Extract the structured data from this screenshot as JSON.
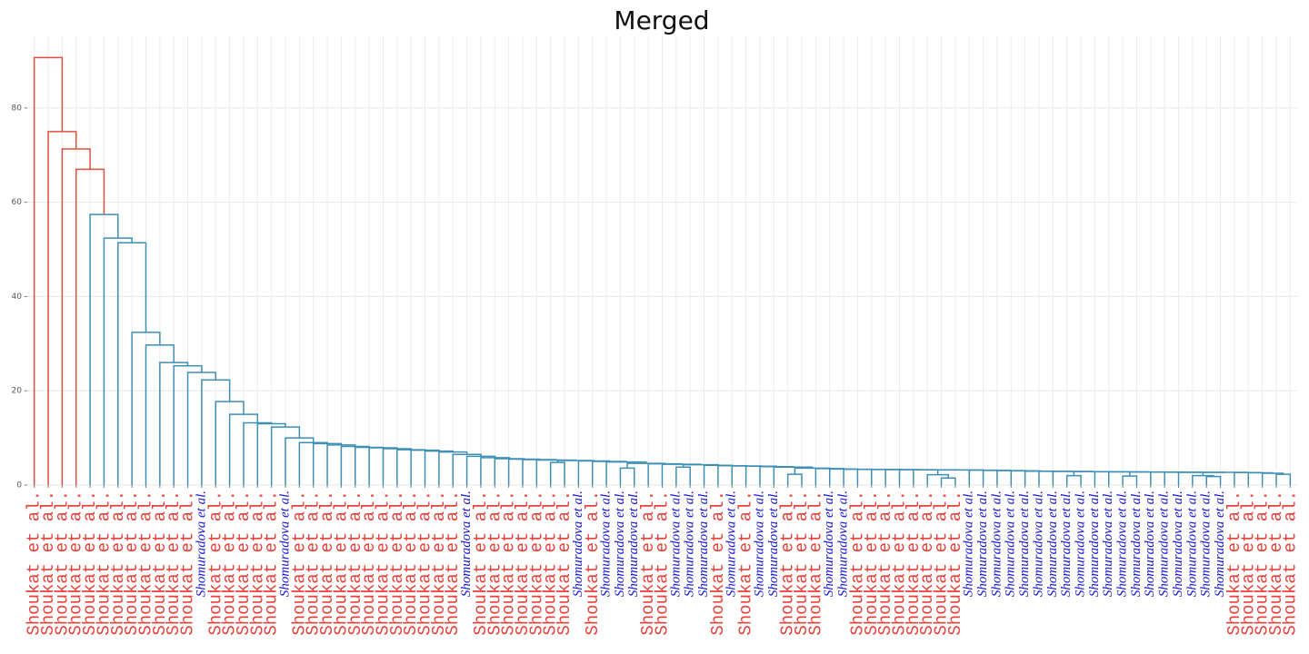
{
  "chart_data": {
    "type": "dendrogram",
    "title": "Merged",
    "labels": [
      "Shoukat et al.",
      "Shoukat et al.",
      "Shoukat et al.",
      "Shoukat et al.",
      "Shoukat et al.",
      "Shoukat et al.",
      "Shoukat et al.",
      "Shoukat et al.",
      "Shoukat et al.",
      "Shoukat et al.",
      "Shoukat et al.",
      "Shoukat et al.",
      "Shomuradova et al.",
      "Shoukat et al.",
      "Shoukat et al.",
      "Shoukat et al.",
      "Shoukat et al.",
      "Shoukat et al.",
      "Shomuradova et al.",
      "Shoukat et al.",
      "Shoukat et al.",
      "Shoukat et al.",
      "Shoukat et al.",
      "Shoukat et al.",
      "Shoukat et al.",
      "Shoukat et al.",
      "Shoukat et al.",
      "Shoukat et al.",
      "Shoukat et al.",
      "Shoukat et al.",
      "Shoukat et al.",
      "Shomuradova et al.",
      "Shoukat et al.",
      "Shoukat et al.",
      "Shoukat et al.",
      "Shoukat et al.",
      "Shoukat et al.",
      "Shoukat et al.",
      "Shoukat et al.",
      "Shomuradova et al.",
      "Shoukat et al.",
      "Shomuradova et al.",
      "Shomuradova et al.",
      "Shomuradova et al.",
      "Shoukat et al.",
      "Shoukat et al.",
      "Shomuradova et al.",
      "Shomuradova et al.",
      "Shomuradova et al.",
      "Shoukat et al.",
      "Shomuradova et al.",
      "Shoukat et al.",
      "Shomuradova et al.",
      "Shomuradova et al.",
      "Shoukat et al.",
      "Shoukat et al.",
      "Shoukat et al.",
      "Shomuradova et al.",
      "Shomuradova et al.",
      "Shoukat et al.",
      "Shoukat et al.",
      "Shoukat et al.",
      "Shoukat et al.",
      "Shoukat et al.",
      "Shoukat et al.",
      "Shoukat et al.",
      "Shoukat et al.",
      "Shomuradova et al.",
      "Shomuradova et al.",
      "Shomuradova et al.",
      "Shomuradova et al.",
      "Shomuradova et al.",
      "Shomuradova et al.",
      "Shomuradova et al.",
      "Shomuradova et al.",
      "Shomuradova et al.",
      "Shomuradova et al.",
      "Shomuradova et al.",
      "Shomuradova et al.",
      "Shomuradova et al.",
      "Shomuradova et al.",
      "Shomuradova et al.",
      "Shomuradova et al.",
      "Shomuradova et al.",
      "Shomuradova et al.",
      "Shomuradova et al.",
      "Shoukat et al.",
      "Shoukat et al.",
      "Shoukat et al.",
      "Shoukat et al.",
      "Shoukat et al."
    ],
    "label_styles": {
      "Shoukat et al.": {
        "color": "#e8413a",
        "italic": false
      },
      "Shomuradova et al.": {
        "color": "#1414d8",
        "italic": true
      }
    },
    "linkage": [
      [
        65,
        66,
        1.5
      ],
      [
        64,
        91,
        2.2
      ],
      [
        54,
        55,
        2.3
      ],
      [
        42,
        43,
        3.6
      ],
      [
        46,
        47,
        3.8
      ],
      [
        37,
        38,
        4.8
      ],
      [
        74,
        75,
        2.0
      ],
      [
        78,
        79,
        1.9
      ],
      [
        84,
        85,
        1.8
      ],
      [
        83,
        99,
        2.0
      ],
      [
        89,
        90,
        2.3
      ],
      [
        88,
        101,
        2.5
      ],
      [
        87,
        102,
        2.6
      ],
      [
        86,
        103,
        2.65
      ],
      [
        100,
        104,
        2.7
      ],
      [
        82,
        105,
        2.7
      ],
      [
        81,
        106,
        2.72
      ],
      [
        80,
        107,
        2.74
      ],
      [
        98,
        108,
        2.76
      ],
      [
        77,
        109,
        2.8
      ],
      [
        76,
        110,
        2.82
      ],
      [
        97,
        111,
        2.85
      ],
      [
        73,
        112,
        2.9
      ],
      [
        72,
        113,
        2.92
      ],
      [
        71,
        114,
        2.95
      ],
      [
        70,
        115,
        3.0
      ],
      [
        69,
        116,
        3.05
      ],
      [
        68,
        117,
        3.1
      ],
      [
        67,
        118,
        3.15
      ],
      [
        92,
        119,
        3.2
      ],
      [
        63,
        120,
        3.22
      ],
      [
        62,
        121,
        3.25
      ],
      [
        61,
        122,
        3.28
      ],
      [
        60,
        123,
        3.3
      ],
      [
        59,
        124,
        3.32
      ],
      [
        58,
        125,
        3.35
      ],
      [
        57,
        126,
        3.4
      ],
      [
        56,
        127,
        3.5
      ],
      [
        93,
        128,
        3.6
      ],
      [
        53,
        129,
        3.8
      ],
      [
        52,
        130,
        3.9
      ],
      [
        51,
        131,
        4.0
      ],
      [
        50,
        132,
        4.05
      ],
      [
        49,
        133,
        4.1
      ],
      [
        48,
        134,
        4.2
      ],
      [
        95,
        135,
        4.3
      ],
      [
        45,
        136,
        4.4
      ],
      [
        44,
        137,
        4.5
      ],
      [
        94,
        138,
        4.6
      ],
      [
        41,
        139,
        4.9
      ],
      [
        40,
        140,
        5.0
      ],
      [
        39,
        141,
        5.1
      ],
      [
        96,
        142,
        5.2
      ],
      [
        36,
        143,
        5.3
      ],
      [
        35,
        144,
        5.4
      ],
      [
        34,
        145,
        5.5
      ],
      [
        33,
        146,
        5.6
      ],
      [
        32,
        147,
        5.8
      ],
      [
        31,
        148,
        6.1
      ],
      [
        30,
        149,
        6.5
      ],
      [
        29,
        150,
        7.0
      ],
      [
        28,
        151,
        7.2
      ],
      [
        27,
        152,
        7.4
      ],
      [
        26,
        153,
        7.5
      ],
      [
        25,
        154,
        7.7
      ],
      [
        24,
        155,
        7.9
      ],
      [
        23,
        156,
        8.0
      ],
      [
        22,
        157,
        8.2
      ],
      [
        21,
        158,
        8.5
      ],
      [
        20,
        159,
        8.8
      ],
      [
        19,
        160,
        9.0
      ],
      [
        18,
        161,
        10.0
      ],
      [
        17,
        162,
        12.3
      ],
      [
        16,
        163,
        13.0
      ],
      [
        15,
        164,
        13.2
      ],
      [
        14,
        165,
        15.0
      ],
      [
        13,
        166,
        17.7
      ],
      [
        12,
        167,
        22.3
      ],
      [
        11,
        168,
        23.9
      ],
      [
        10,
        169,
        25.3
      ],
      [
        9,
        170,
        26.0
      ],
      [
        8,
        171,
        29.7
      ],
      [
        7,
        172,
        32.4
      ],
      [
        6,
        173,
        51.4
      ],
      [
        5,
        174,
        52.4
      ],
      [
        4,
        175,
        57.4
      ],
      [
        3,
        176,
        67.0
      ],
      [
        2,
        177,
        71.3
      ],
      [
        1,
        178,
        75.0
      ],
      [
        0,
        179,
        90.7
      ]
    ],
    "color_threshold": 63.5,
    "above_threshold_color": "#e0503c",
    "link_color": "#3d8fb5",
    "ylim": [
      0,
      95.2
    ],
    "yticks": [
      0,
      20,
      40,
      60,
      80
    ],
    "grid": true
  }
}
